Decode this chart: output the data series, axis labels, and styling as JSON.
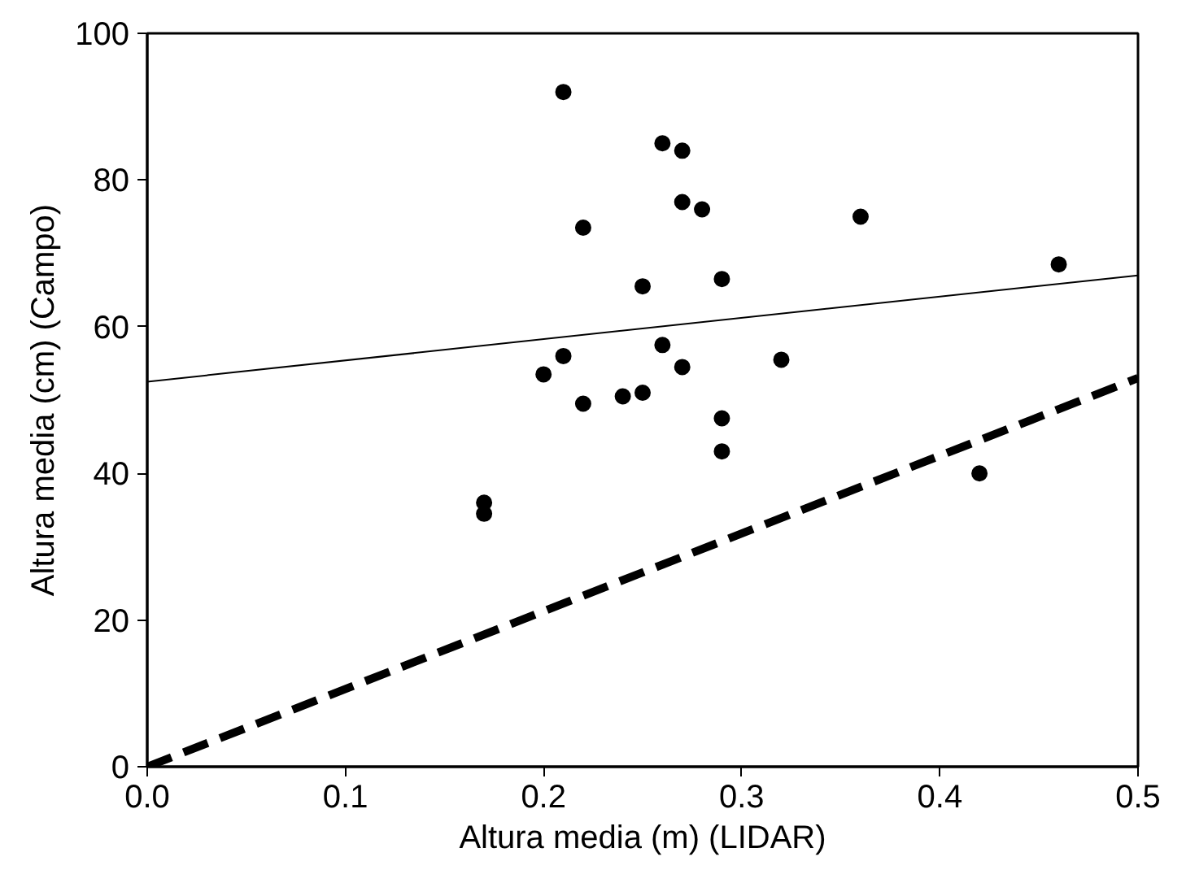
{
  "chart_data": {
    "type": "scatter",
    "xlabel": "Altura media (m) (LIDAR)",
    "ylabel": "Altura media (cm) (Campo)",
    "xlim": [
      0,
      0.5
    ],
    "ylim": [
      0,
      100
    ],
    "xticks": [
      {
        "value": 0,
        "label": "0.0"
      },
      0.1,
      0.2,
      0.3,
      0.4,
      0.5
    ],
    "yticks": [
      0,
      20,
      40,
      60,
      80,
      100
    ],
    "grid": false,
    "series": [
      {
        "marker": "circle",
        "color": "#000000",
        "x": [
          0.17,
          0.17,
          0.2,
          0.21,
          0.21,
          0.22,
          0.22,
          0.24,
          0.25,
          0.25,
          0.26,
          0.26,
          0.27,
          0.27,
          0.27,
          0.28,
          0.29,
          0.29,
          0.29,
          0.32,
          0.36,
          0.42,
          0.46
        ],
        "values": [
          36,
          34.5,
          53.5,
          92,
          56,
          73.5,
          49.5,
          50.5,
          51,
          65.5,
          85,
          57.5,
          84,
          77,
          54.5,
          76,
          66.5,
          47.5,
          43,
          55.5,
          75,
          40,
          68.5
        ]
      },
      {
        "type": "line",
        "color": "#000000",
        "line_style": "solid",
        "x": [
          0,
          0.5
        ],
        "values": [
          52.5,
          67
        ]
      },
      {
        "type": "line",
        "color": "#000000",
        "line_style": "dashed",
        "x": [
          0,
          0.5
        ],
        "values": [
          0,
          53
        ]
      }
    ]
  }
}
